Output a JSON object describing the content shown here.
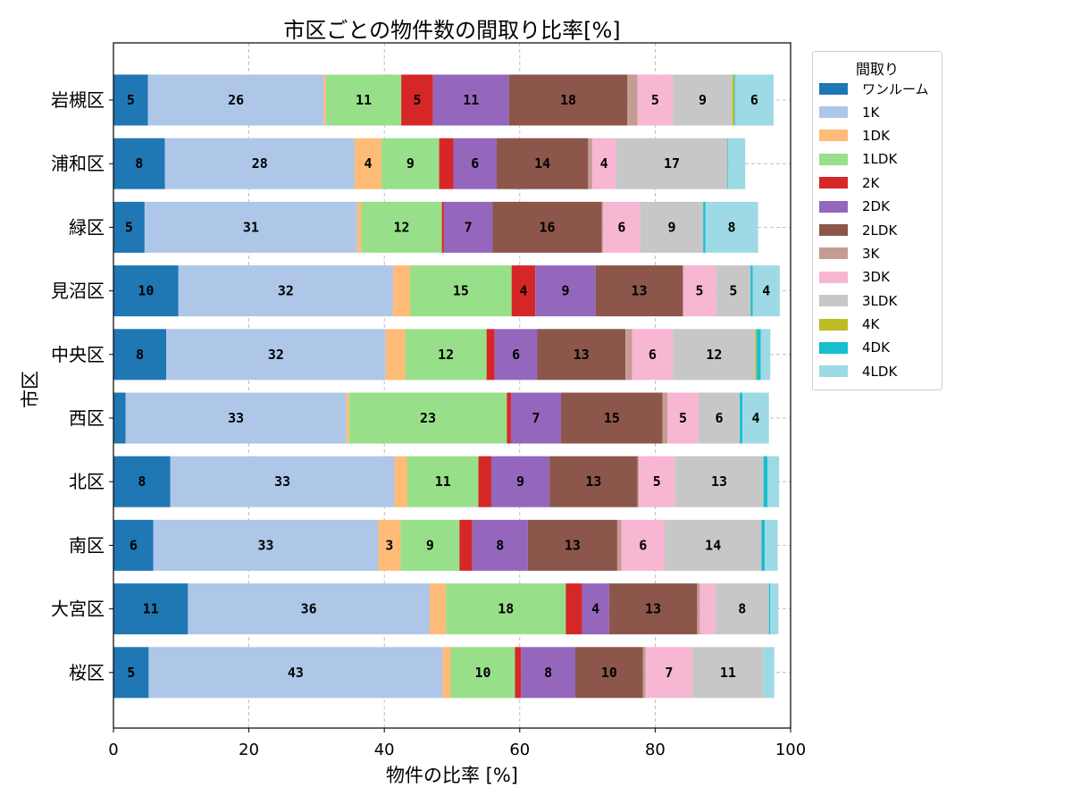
{
  "chart_data": {
    "type": "bar",
    "orientation": "horizontal",
    "stacked": true,
    "title": "市区ごとの物件数の間取り比率[%]",
    "xlabel": "物件の比率 [%]",
    "ylabel": "市区",
    "xlim": [
      0,
      100
    ],
    "xticks": [
      "0",
      "20",
      "40",
      "60",
      "80",
      "100"
    ],
    "grid": true,
    "legend_title": "間取り",
    "legend_position": "outside-top-right",
    "categories": [
      "岩槻区",
      "浦和区",
      "緑区",
      "見沼区",
      "中央区",
      "西区",
      "北区",
      "南区",
      "大宮区",
      "桜区"
    ],
    "series": [
      {
        "name": "ワンルーム",
        "color": "#1f77b4",
        "values": [
          5.1,
          7.6,
          4.6,
          9.6,
          7.8,
          1.8,
          8.4,
          5.9,
          11.0,
          5.2
        ]
      },
      {
        "name": "1K",
        "color": "#aec7e8",
        "values": [
          26.0,
          28.0,
          31.4,
          31.7,
          32.4,
          32.6,
          33.1,
          33.2,
          35.7,
          43.4
        ]
      },
      {
        "name": "1DK",
        "color": "#ffbb78",
        "values": [
          0.3,
          4.0,
          0.6,
          2.5,
          2.9,
          0.4,
          1.9,
          3.3,
          2.4,
          1.2
        ]
      },
      {
        "name": "1LDK",
        "color": "#98df8a",
        "values": [
          11.1,
          8.5,
          11.9,
          15.0,
          12.0,
          23.3,
          10.5,
          8.7,
          17.7,
          9.5
        ]
      },
      {
        "name": "2K",
        "color": "#d62728",
        "values": [
          4.7,
          2.1,
          0.3,
          3.5,
          1.2,
          0.6,
          1.9,
          1.9,
          2.4,
          0.9
        ]
      },
      {
        "name": "2DK",
        "color": "#9467bd",
        "values": [
          11.2,
          6.4,
          7.2,
          8.9,
          6.3,
          7.4,
          8.6,
          8.2,
          4.0,
          8.0
        ]
      },
      {
        "name": "2LDK",
        "color": "#8c564b",
        "values": [
          17.5,
          13.5,
          16.1,
          12.9,
          13.0,
          15.0,
          13.0,
          13.2,
          13.0,
          10.0
        ]
      },
      {
        "name": "3K",
        "color": "#c49c94",
        "values": [
          1.5,
          0.6,
          0.2,
          0.0,
          1.0,
          0.7,
          0.2,
          0.6,
          0.4,
          0.4
        ]
      },
      {
        "name": "3DK",
        "color": "#f7b6d2",
        "values": [
          5.2,
          3.5,
          5.5,
          4.9,
          6.0,
          4.6,
          5.3,
          6.4,
          2.3,
          6.9
        ]
      },
      {
        "name": "3LDK",
        "color": "#c7c7c7",
        "values": [
          8.8,
          16.5,
          9.3,
          5.1,
          12.2,
          6.1,
          13.1,
          14.3,
          7.9,
          10.5
        ]
      },
      {
        "name": "4K",
        "color": "#bcbd22",
        "values": [
          0.3,
          0.0,
          0.0,
          0.0,
          0.2,
          0.0,
          0.0,
          0.0,
          0.0,
          0.0
        ]
      },
      {
        "name": "4DK",
        "color": "#17becf",
        "values": [
          0.1,
          0.1,
          0.3,
          0.3,
          0.6,
          0.4,
          0.6,
          0.5,
          0.2,
          0.0
        ]
      },
      {
        "name": "4LDK",
        "color": "#9edae5",
        "values": [
          5.7,
          2.5,
          7.8,
          4.0,
          1.4,
          3.9,
          1.7,
          1.9,
          1.2,
          1.6
        ]
      }
    ]
  }
}
